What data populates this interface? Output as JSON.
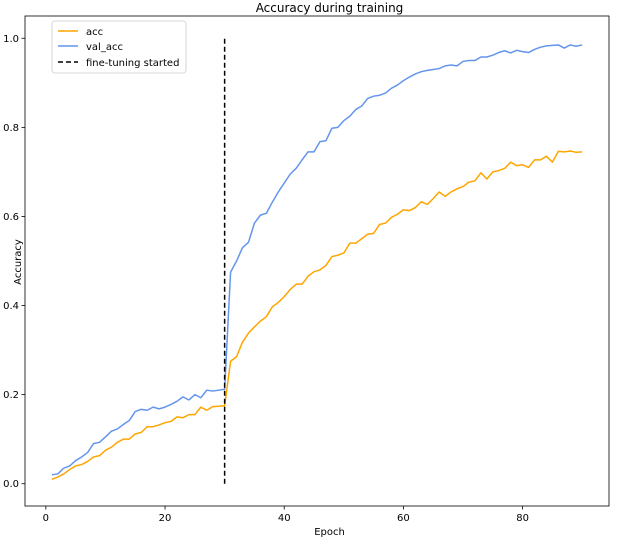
{
  "chart_data": {
    "type": "line",
    "title": "Accuracy during training",
    "xlabel": "Epoch",
    "ylabel": "Accuracy",
    "xlim": [
      -3.5,
      94.5
    ],
    "ylim": [
      -0.05,
      1.05
    ],
    "xticks": [
      0,
      20,
      40,
      60,
      80
    ],
    "xtick_labels": [
      "0",
      "20",
      "40",
      "60",
      "80"
    ],
    "yticks": [
      0.0,
      0.2,
      0.4,
      0.6,
      0.8,
      1.0
    ],
    "ytick_labels": [
      "0.0",
      "0.2",
      "0.4",
      "0.6",
      "0.8",
      "1.0"
    ],
    "grid": false,
    "legend_position": "top-left",
    "x": [
      1,
      2,
      3,
      4,
      5,
      6,
      7,
      8,
      9,
      10,
      11,
      12,
      13,
      14,
      15,
      16,
      17,
      18,
      19,
      20,
      21,
      22,
      23,
      24,
      25,
      26,
      27,
      28,
      29,
      30,
      31,
      32,
      33,
      34,
      35,
      36,
      37,
      38,
      39,
      40,
      41,
      42,
      43,
      44,
      45,
      46,
      47,
      48,
      49,
      50,
      51,
      52,
      53,
      54,
      55,
      56,
      57,
      58,
      59,
      60,
      61,
      62,
      63,
      64,
      65,
      66,
      67,
      68,
      69,
      70,
      71,
      72,
      73,
      74,
      75,
      76,
      77,
      78,
      79,
      80,
      81,
      82,
      83,
      84,
      85,
      86,
      87,
      88,
      89,
      90
    ],
    "series": [
      {
        "name": "acc",
        "color": "#FFA500",
        "values": [
          0.01,
          0.015,
          0.022,
          0.032,
          0.04,
          0.043,
          0.05,
          0.06,
          0.063,
          0.075,
          0.082,
          0.093,
          0.1,
          0.1,
          0.112,
          0.115,
          0.128,
          0.128,
          0.132,
          0.137,
          0.14,
          0.15,
          0.148,
          0.155,
          0.155,
          0.172,
          0.165,
          0.173,
          0.174,
          0.175,
          0.275,
          0.285,
          0.318,
          0.338,
          0.352,
          0.365,
          0.375,
          0.397,
          0.407,
          0.42,
          0.436,
          0.448,
          0.448,
          0.466,
          0.476,
          0.48,
          0.49,
          0.51,
          0.513,
          0.518,
          0.54,
          0.54,
          0.55,
          0.56,
          0.562,
          0.582,
          0.585,
          0.598,
          0.605,
          0.615,
          0.613,
          0.62,
          0.633,
          0.627,
          0.64,
          0.655,
          0.645,
          0.655,
          0.662,
          0.667,
          0.677,
          0.68,
          0.698,
          0.684,
          0.7,
          0.703,
          0.708,
          0.722,
          0.714,
          0.716,
          0.71,
          0.727,
          0.727,
          0.735,
          0.722,
          0.746,
          0.745,
          0.747,
          0.744,
          0.745
        ]
      },
      {
        "name": "val_acc",
        "color": "#6495ED",
        "values": [
          0.02,
          0.022,
          0.035,
          0.04,
          0.052,
          0.06,
          0.07,
          0.09,
          0.093,
          0.105,
          0.118,
          0.123,
          0.133,
          0.142,
          0.162,
          0.167,
          0.165,
          0.172,
          0.168,
          0.172,
          0.178,
          0.185,
          0.195,
          0.188,
          0.2,
          0.193,
          0.21,
          0.208,
          0.21,
          0.212,
          0.475,
          0.5,
          0.53,
          0.542,
          0.585,
          0.603,
          0.607,
          0.632,
          0.655,
          0.675,
          0.695,
          0.708,
          0.727,
          0.745,
          0.745,
          0.768,
          0.77,
          0.798,
          0.8,
          0.815,
          0.825,
          0.84,
          0.848,
          0.865,
          0.87,
          0.872,
          0.877,
          0.888,
          0.895,
          0.905,
          0.913,
          0.92,
          0.925,
          0.928,
          0.93,
          0.932,
          0.938,
          0.94,
          0.938,
          0.948,
          0.95,
          0.95,
          0.958,
          0.958,
          0.962,
          0.968,
          0.972,
          0.967,
          0.973,
          0.97,
          0.968,
          0.975,
          0.98,
          0.983,
          0.984,
          0.985,
          0.978,
          0.985,
          0.982,
          0.985
        ]
      }
    ],
    "vline": {
      "name": "fine-tuning started",
      "x": 30,
      "ymin": 0.0,
      "ymax": 1.0,
      "color": "#000000",
      "style": "dashed"
    }
  }
}
